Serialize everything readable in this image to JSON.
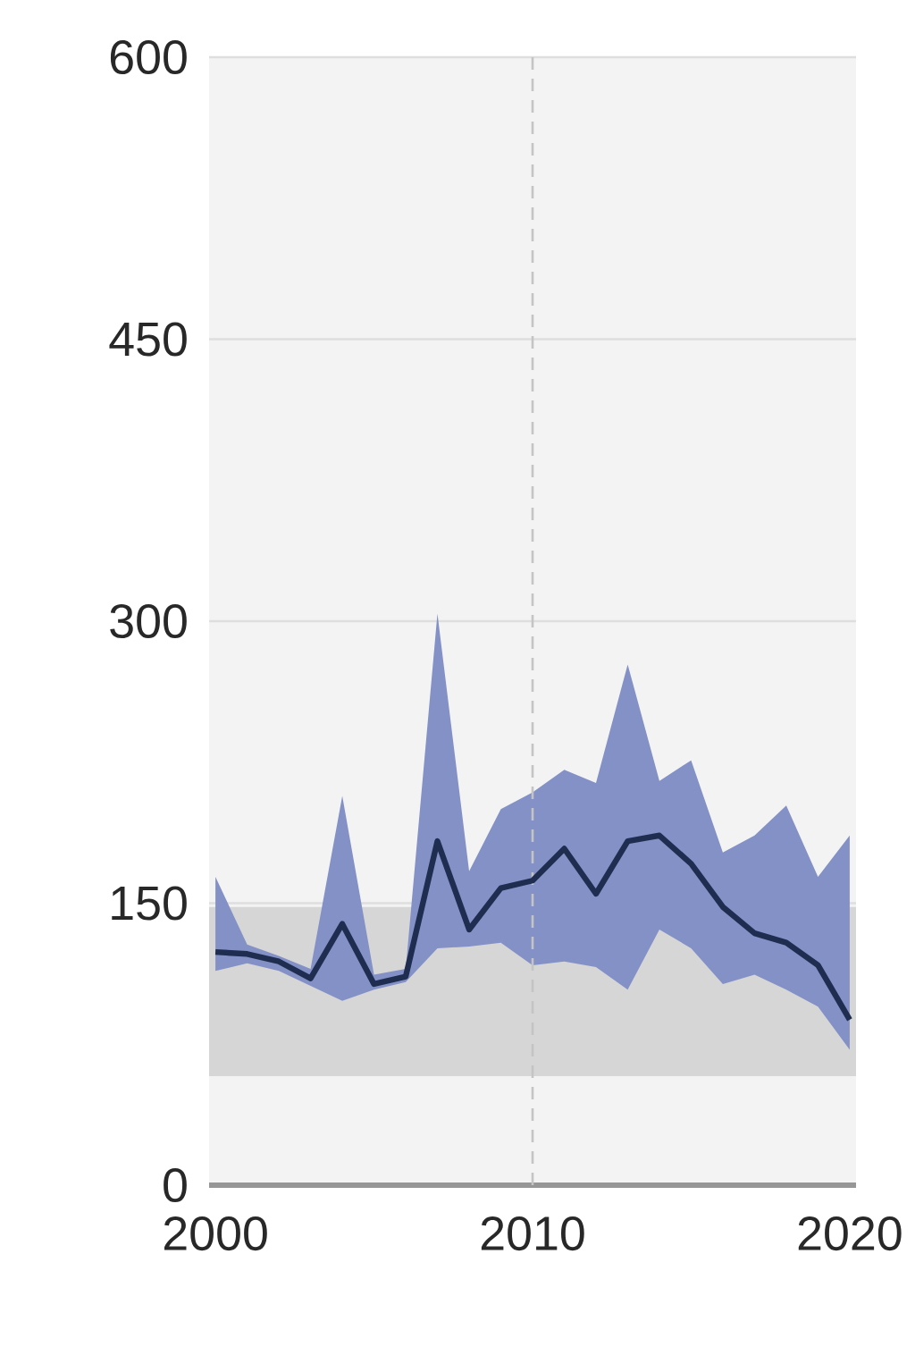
{
  "chart_data": {
    "type": "line",
    "x": [
      2000,
      2001,
      2002,
      2003,
      2004,
      2005,
      2006,
      2007,
      2008,
      2009,
      2010,
      2011,
      2012,
      2013,
      2014,
      2015,
      2016,
      2017,
      2018,
      2019,
      2020
    ],
    "series": [
      {
        "color": "#1f2d50",
        "values": [
          124,
          123,
          119,
          110,
          139,
          107,
          111,
          183,
          136,
          158,
          162,
          179,
          155,
          183,
          186,
          171,
          148,
          134,
          129,
          117,
          88
        ],
        "lower": [
          114,
          118,
          114,
          106,
          98,
          104,
          108,
          126,
          127,
          129,
          117,
          119,
          116,
          104,
          136,
          126,
          107,
          112,
          104,
          95,
          72
        ],
        "upper": [
          164,
          128,
          122,
          115,
          207,
          112,
          115,
          304,
          167,
          200,
          209,
          221,
          214,
          277,
          215,
          226,
          177,
          186,
          202,
          164,
          186
        ]
      }
    ],
    "xlim": [
      1999.8,
      2020.2
    ],
    "ylim": [
      0,
      600
    ],
    "xticks": [
      2000,
      2010,
      2020
    ],
    "yticks": [
      0,
      150,
      300,
      450,
      600
    ],
    "grid": "y",
    "marker": "none",
    "line_style": "solid",
    "ref_lines": [
      {
        "axis": "x",
        "value": 2010,
        "line_style": "dashed",
        "color": "#c4c4c4"
      }
    ],
    "bands": [
      {
        "axis": "y",
        "from": 58,
        "to": 148,
        "color": "#d6d6d6"
      }
    ]
  }
}
